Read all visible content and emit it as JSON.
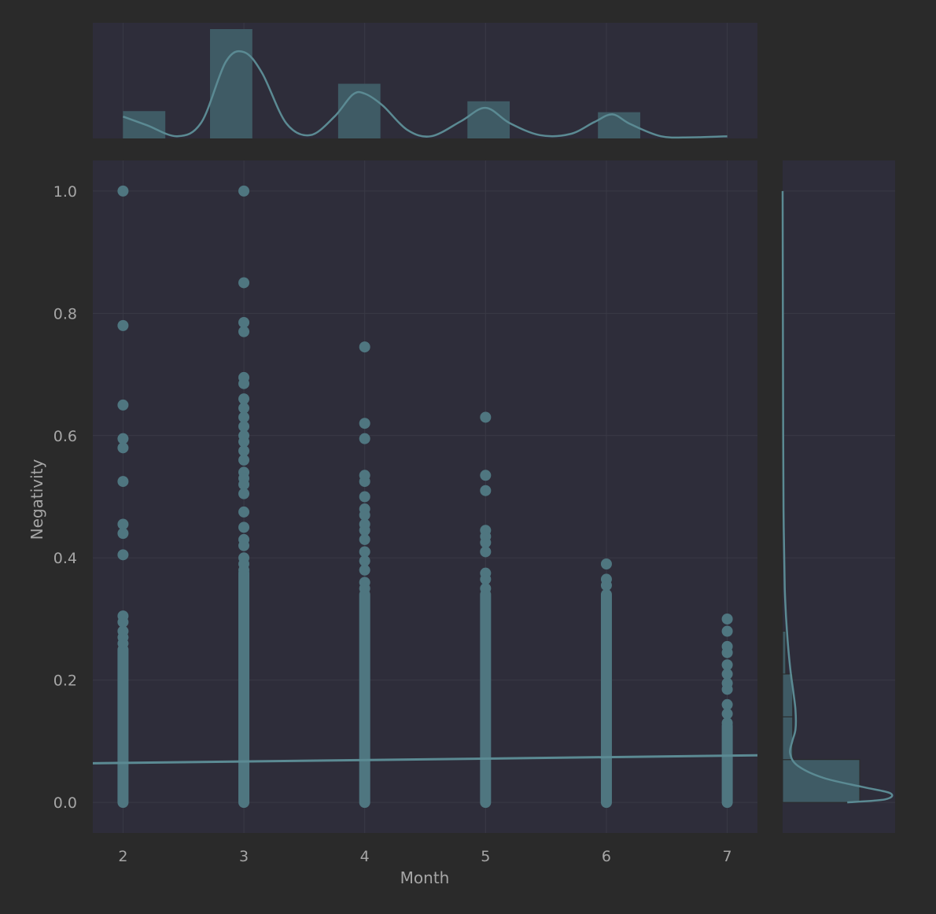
{
  "chart_data": {
    "type": "scatter",
    "title": "",
    "xlabel": "Month",
    "ylabel": "Negativity",
    "xlim": [
      1.75,
      7.25
    ],
    "ylim": [
      -0.05,
      1.05
    ],
    "x_ticks": [
      2,
      3,
      4,
      5,
      6,
      7
    ],
    "y_ticks": [
      0.0,
      0.2,
      0.4,
      0.6,
      0.8,
      1.0
    ],
    "grid": true,
    "colors": {
      "background": "#2a2a2a",
      "panel": "#2e2d3a",
      "grid": "#3a3a46",
      "marker": "#4f7680",
      "line": "#5b8a93",
      "hist_fill": "#3f5b65"
    },
    "points": [
      {
        "month": 2,
        "negativity": [
          1.0,
          0.78,
          0.65,
          0.595,
          0.58,
          0.525,
          0.455,
          0.44,
          0.405,
          0.305,
          0.295,
          0.28,
          0.27,
          0.26
        ]
      },
      {
        "month": 3,
        "negativity": [
          1.0,
          0.85,
          0.785,
          0.77,
          0.695,
          0.685,
          0.66,
          0.645,
          0.63,
          0.615,
          0.6,
          0.59,
          0.575,
          0.56,
          0.54,
          0.53,
          0.52,
          0.505,
          0.475,
          0.45,
          0.43,
          0.42,
          0.4,
          0.39,
          0.38
        ]
      },
      {
        "month": 4,
        "negativity": [
          0.745,
          0.62,
          0.595,
          0.535,
          0.525,
          0.5,
          0.48,
          0.47,
          0.455,
          0.445,
          0.43,
          0.41,
          0.395,
          0.38,
          0.36,
          0.35
        ]
      },
      {
        "month": 5,
        "negativity": [
          0.63,
          0.535,
          0.51,
          0.445,
          0.435,
          0.425,
          0.41,
          0.375,
          0.365,
          0.35
        ]
      },
      {
        "month": 6,
        "negativity": [
          0.39,
          0.365,
          0.355
        ]
      },
      {
        "month": 7,
        "negativity": [
          0.3,
          0.28,
          0.255,
          0.245,
          0.225,
          0.21,
          0.195,
          0.185,
          0.16,
          0.145,
          0.13
        ]
      }
    ],
    "dense_ranges": [
      {
        "month": 2,
        "from": 0.0,
        "to": 0.25
      },
      {
        "month": 3,
        "from": 0.0,
        "to": 0.375
      },
      {
        "month": 4,
        "from": 0.0,
        "to": 0.34
      },
      {
        "month": 5,
        "from": 0.0,
        "to": 0.34
      },
      {
        "month": 6,
        "from": 0.0,
        "to": 0.34
      },
      {
        "month": 7,
        "from": 0.0,
        "to": 0.125
      }
    ],
    "regression": {
      "x": [
        1.75,
        7.25
      ],
      "y": [
        0.064,
        0.077
      ]
    },
    "marginal_x": {
      "bins": [
        {
          "from": 2.0,
          "to": 2.35,
          "height": 0.25
        },
        {
          "from": 2.72,
          "to": 3.07,
          "height": 1.0
        },
        {
          "from": 3.78,
          "to": 4.13,
          "height": 0.5
        },
        {
          "from": 4.85,
          "to": 5.2,
          "height": 0.34
        },
        {
          "from": 5.93,
          "to": 6.28,
          "height": 0.24
        }
      ],
      "kde": [
        [
          2.0,
          0.2
        ],
        [
          2.2,
          0.12
        ],
        [
          2.45,
          0.02
        ],
        [
          2.65,
          0.15
        ],
        [
          2.85,
          0.7
        ],
        [
          3.0,
          0.79
        ],
        [
          3.15,
          0.6
        ],
        [
          3.35,
          0.14
        ],
        [
          3.55,
          0.03
        ],
        [
          3.75,
          0.2
        ],
        [
          3.9,
          0.4
        ],
        [
          4.0,
          0.41
        ],
        [
          4.15,
          0.3
        ],
        [
          4.35,
          0.08
        ],
        [
          4.55,
          0.02
        ],
        [
          4.8,
          0.16
        ],
        [
          5.0,
          0.28
        ],
        [
          5.2,
          0.14
        ],
        [
          5.45,
          0.03
        ],
        [
          5.7,
          0.04
        ],
        [
          5.9,
          0.15
        ],
        [
          6.05,
          0.22
        ],
        [
          6.2,
          0.13
        ],
        [
          6.45,
          0.02
        ],
        [
          6.7,
          0.01
        ],
        [
          7.0,
          0.02
        ]
      ]
    },
    "marginal_y": {
      "bins": [
        {
          "from": 0.0,
          "to": 0.07,
          "width": 1.0
        },
        {
          "from": 0.07,
          "to": 0.14,
          "width": 0.13
        },
        {
          "from": 0.14,
          "to": 0.21,
          "width": 0.13
        },
        {
          "from": 0.21,
          "to": 0.28,
          "width": 0.04
        }
      ],
      "kde": [
        [
          0.0,
          0.6
        ],
        [
          0.005,
          0.95
        ],
        [
          0.015,
          1.0
        ],
        [
          0.025,
          0.75
        ],
        [
          0.04,
          0.38
        ],
        [
          0.06,
          0.14
        ],
        [
          0.08,
          0.07
        ],
        [
          0.1,
          0.09
        ],
        [
          0.12,
          0.12
        ],
        [
          0.15,
          0.12
        ],
        [
          0.18,
          0.1
        ],
        [
          0.22,
          0.07
        ],
        [
          0.28,
          0.04
        ],
        [
          0.35,
          0.02
        ],
        [
          0.45,
          0.01
        ],
        [
          0.6,
          0.005
        ],
        [
          1.0,
          0.0
        ]
      ]
    }
  }
}
